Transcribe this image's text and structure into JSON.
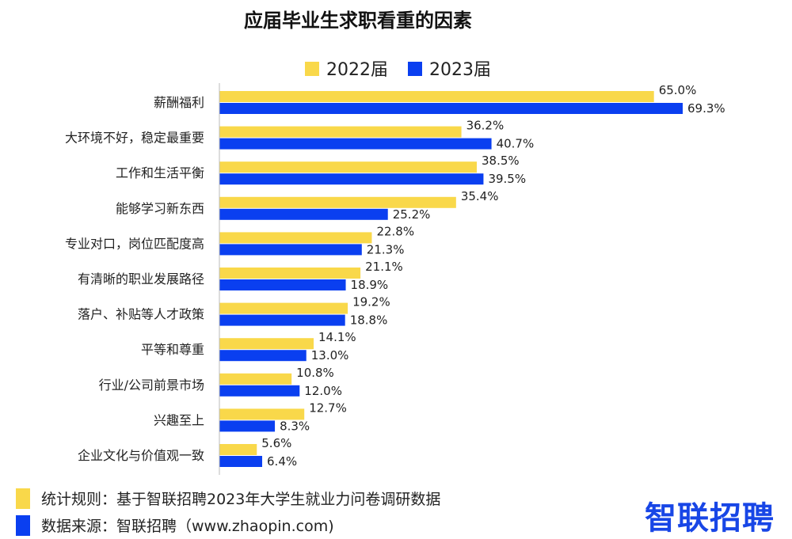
{
  "chart_data": {
    "type": "bar",
    "orientation": "horizontal",
    "title": "应届毕业生求职看重的因素",
    "categories": [
      "薪酬福利",
      "大环境不好，稳定最重要",
      "工作和生活平衡",
      "能够学习新东西",
      "专业对口，岗位匹配度高",
      "有清晰的职业发展路径",
      "落户、补贴等人才政策",
      "平等和尊重",
      "行业/公司前景市场",
      "兴趣至上",
      "企业文化与价值观一致"
    ],
    "series": [
      {
        "name": "2022届",
        "color": "#F9D84A",
        "values": [
          65.0,
          36.2,
          38.5,
          35.4,
          22.8,
          21.1,
          19.2,
          14.1,
          10.8,
          12.7,
          5.6
        ]
      },
      {
        "name": "2023届",
        "color": "#0A3FF0",
        "values": [
          69.3,
          40.7,
          39.5,
          25.2,
          21.3,
          18.9,
          18.8,
          13.0,
          12.0,
          8.3,
          6.4
        ]
      }
    ],
    "xlim": [
      0,
      70
    ],
    "unit": "%",
    "legend_position": "top-center",
    "grid": false
  },
  "footer": {
    "rule": "统计规则：基于智联招聘2023年大学生就业力问卷调研数据",
    "source": "数据来源：智联招聘（www.zhaopin.com)"
  },
  "logo": "智联招聘"
}
